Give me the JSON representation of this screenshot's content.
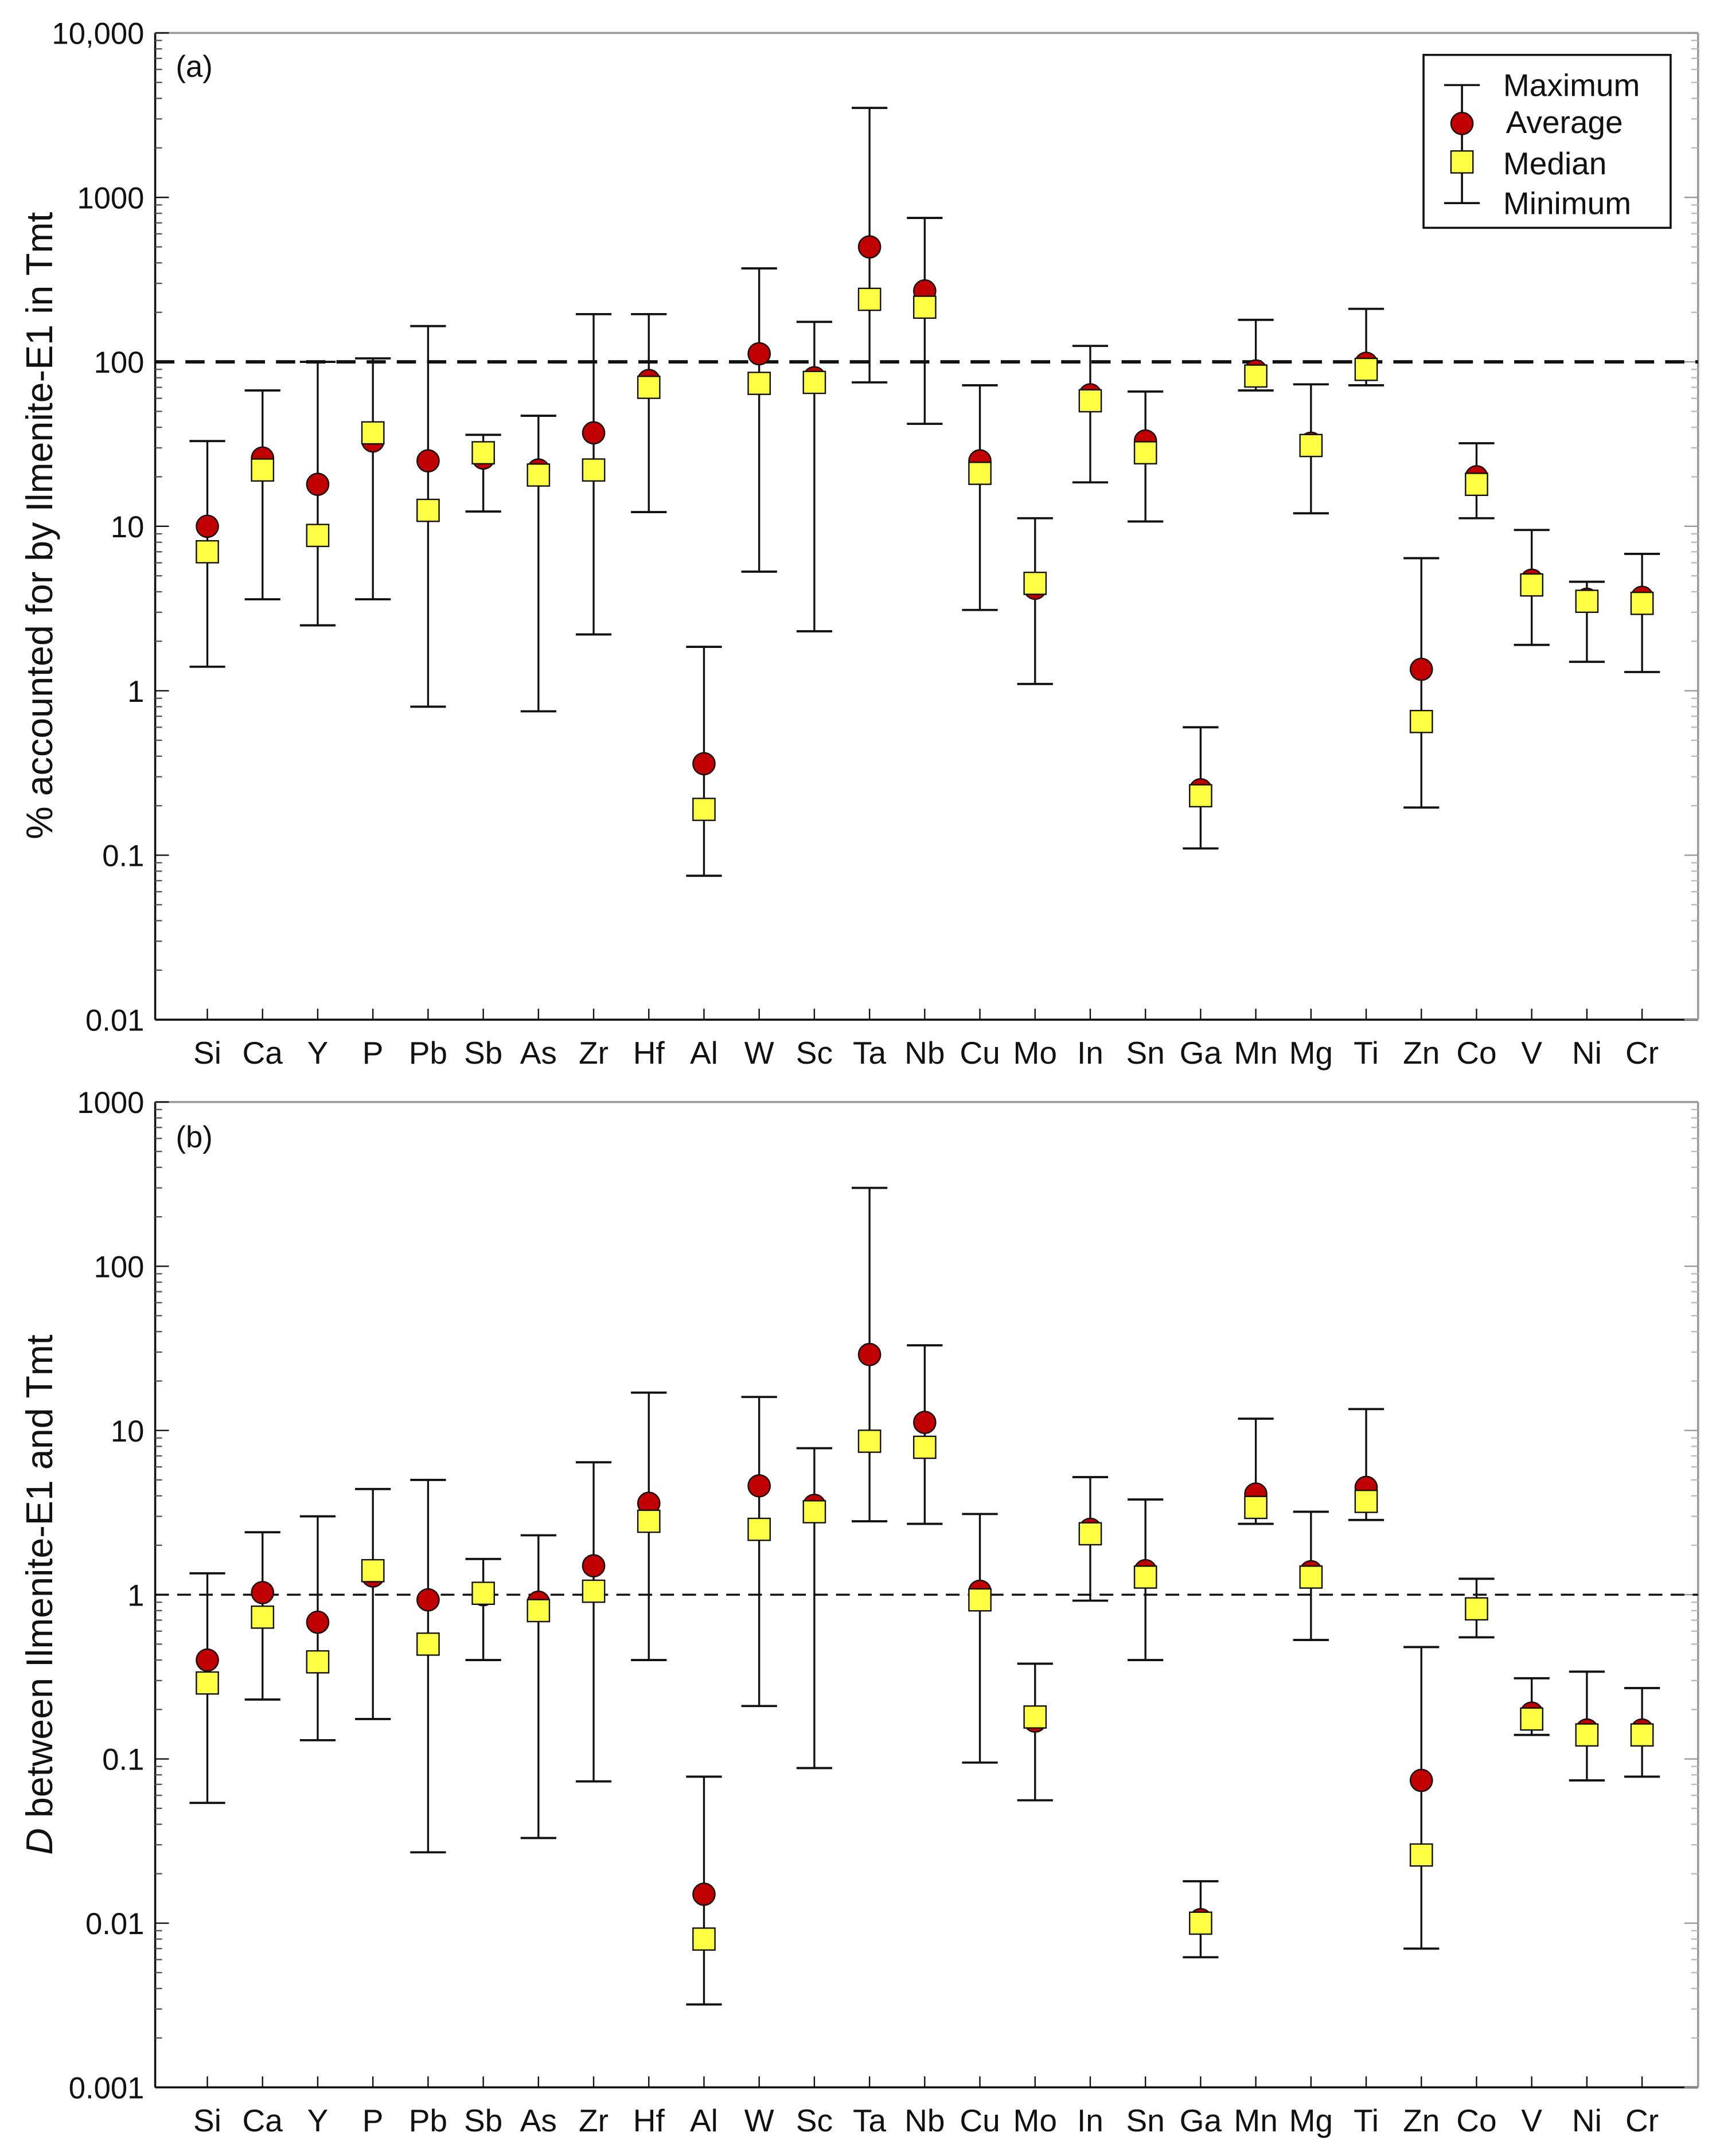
{
  "colors": {
    "average": "#c00000",
    "median": "#ffff44",
    "line": "#111111",
    "reference": "#111111"
  },
  "chart_data": [
    {
      "type": "scatter",
      "panel_label": "(a)",
      "ylabel": "% accounted for by Ilmenite-E1 in Tmt",
      "yscale": "log",
      "ylim": [
        0.01,
        10000
      ],
      "ytick_labels": [
        "0.01",
        "0.1",
        "1",
        "10",
        "100",
        "1000",
        "10,000"
      ],
      "yticks": [
        0.01,
        0.1,
        1,
        10,
        100,
        1000,
        10000
      ],
      "reference_line": 100,
      "legend": {
        "position": "top-right",
        "entries": [
          "Maximum",
          "Average",
          "Median",
          "Minimum"
        ]
      },
      "categories": [
        "Si",
        "Ca",
        "Y",
        "P",
        "Pb",
        "Sb",
        "As",
        "Zr",
        "Hf",
        "Al",
        "W",
        "Sc",
        "Ta",
        "Nb",
        "Cu",
        "Mo",
        "In",
        "Sn",
        "Ga",
        "Mn",
        "Mg",
        "Ti",
        "Zn",
        "Co",
        "V",
        "Ni",
        "Cr"
      ],
      "series": [
        {
          "name": "Maximum",
          "values": [
            33,
            67,
            100,
            105,
            165,
            36,
            47,
            195,
            195,
            1.85,
            370,
            175,
            3500,
            750,
            72,
            11.2,
            125,
            66,
            0.6,
            180,
            73,
            210,
            6.4,
            32,
            9.5,
            4.6,
            6.8
          ]
        },
        {
          "name": "Average",
          "values": [
            10,
            26,
            18,
            33,
            25,
            26,
            22,
            37,
            77,
            0.36,
            112,
            80,
            500,
            270,
            25,
            4.2,
            63,
            33,
            0.25,
            88,
            32,
            98,
            1.35,
            20,
            4.7,
            3.6,
            3.7
          ]
        },
        {
          "name": "Median",
          "values": [
            7,
            22,
            8.8,
            37,
            12.5,
            28,
            20.5,
            22,
            70,
            0.19,
            74,
            75,
            240,
            215,
            21,
            4.5,
            58,
            28,
            0.23,
            82,
            31,
            90,
            0.65,
            18,
            4.4,
            3.5,
            3.4
          ]
        },
        {
          "name": "Minimum",
          "values": [
            1.4,
            3.6,
            2.5,
            3.6,
            0.8,
            12.3,
            0.75,
            2.2,
            12.2,
            0.075,
            5.3,
            2.3,
            75,
            42,
            3.1,
            1.1,
            18.5,
            10.7,
            0.11,
            67,
            12,
            72,
            0.195,
            11.2,
            1.9,
            1.5,
            1.3
          ]
        }
      ]
    },
    {
      "type": "scatter",
      "panel_label": "(b)",
      "ylabel_italic": "D",
      "ylabel": " between Ilmenite-E1 and Tmt",
      "yscale": "log",
      "ylim": [
        0.001,
        1000
      ],
      "ytick_labels": [
        "0.001",
        "0.01",
        "0.1",
        "1",
        "10",
        "100",
        "1000"
      ],
      "yticks": [
        0.001,
        0.01,
        0.1,
        1,
        10,
        100,
        1000
      ],
      "reference_line": 1,
      "categories": [
        "Si",
        "Ca",
        "Y",
        "P",
        "Pb",
        "Sb",
        "As",
        "Zr",
        "Hf",
        "Al",
        "W",
        "Sc",
        "Ta",
        "Nb",
        "Cu",
        "Mo",
        "In",
        "Sn",
        "Ga",
        "Mn",
        "Mg",
        "Ti",
        "Zn",
        "Co",
        "V",
        "Ni",
        "Cr"
      ],
      "series": [
        {
          "name": "Maximum",
          "values": [
            1.35,
            2.4,
            3.0,
            4.4,
            5.0,
            1.65,
            2.3,
            6.4,
            17,
            0.078,
            16,
            7.8,
            300,
            33,
            3.1,
            0.38,
            5.2,
            3.8,
            0.018,
            11.8,
            3.2,
            13.5,
            0.48,
            1.25,
            0.31,
            0.34,
            0.27
          ]
        },
        {
          "name": "Average",
          "values": [
            0.4,
            1.03,
            0.68,
            1.3,
            0.93,
            1.0,
            0.9,
            1.5,
            3.6,
            0.015,
            4.6,
            3.5,
            29,
            11.2,
            1.05,
            0.17,
            2.5,
            1.4,
            0.0105,
            4.1,
            1.38,
            4.5,
            0.074,
            0.82,
            0.19,
            0.15,
            0.15
          ]
        },
        {
          "name": "Median",
          "values": [
            0.29,
            0.73,
            0.39,
            1.4,
            0.5,
            1.02,
            0.8,
            1.05,
            2.8,
            0.008,
            2.5,
            3.2,
            8.6,
            7.9,
            0.93,
            0.18,
            2.35,
            1.28,
            0.01,
            3.4,
            1.28,
            3.7,
            0.026,
            0.82,
            0.175,
            0.14,
            0.14
          ]
        },
        {
          "name": "Minimum",
          "values": [
            0.054,
            0.23,
            0.13,
            0.175,
            0.027,
            0.4,
            0.033,
            0.073,
            0.4,
            0.0032,
            0.21,
            0.088,
            2.8,
            2.7,
            0.095,
            0.056,
            0.92,
            0.4,
            0.0062,
            2.7,
            0.53,
            2.85,
            0.007,
            0.55,
            0.14,
            0.074,
            0.078
          ]
        }
      ]
    }
  ]
}
